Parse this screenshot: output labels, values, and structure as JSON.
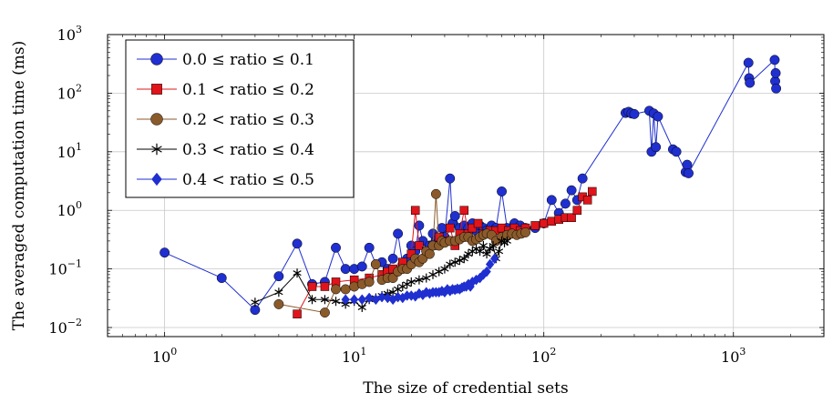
{
  "chart_data": {
    "type": "line",
    "title": "",
    "xlabel": "The size of credential sets",
    "ylabel": "The averaged computation time (ms)",
    "x_scale": "log",
    "y_scale": "log",
    "xlim": [
      0.5,
      3000
    ],
    "ylim": [
      0.007,
      1000
    ],
    "x_tick_labels": [
      {
        "base": "10",
        "exp": "0"
      },
      {
        "base": "10",
        "exp": "1"
      },
      {
        "base": "10",
        "exp": "2"
      },
      {
        "base": "10",
        "exp": "3"
      }
    ],
    "y_tick_labels": [
      {
        "base": "10",
        "exp": "−2"
      },
      {
        "base": "10",
        "exp": "−1"
      },
      {
        "base": "10",
        "exp": "0"
      },
      {
        "base": "10",
        "exp": "1"
      },
      {
        "base": "10",
        "exp": "2"
      },
      {
        "base": "10",
        "exp": "3"
      }
    ],
    "grid": true,
    "legend_position": "top-left",
    "series": [
      {
        "name": "0.0 ≤ ratio ≤ 0.1",
        "color": "#1f2fd0",
        "marker": "circle",
        "x": [
          1,
          2,
          3,
          4,
          5,
          6,
          7,
          8,
          9,
          10,
          11,
          12,
          13,
          14,
          15,
          16,
          17,
          18,
          19,
          20,
          21,
          22,
          23,
          24,
          25,
          26,
          27,
          28,
          29,
          30,
          32,
          33,
          34,
          36,
          38,
          40,
          42,
          44,
          46,
          48,
          50,
          53,
          56,
          60,
          64,
          70,
          75,
          80,
          90,
          100,
          110,
          120,
          130,
          140,
          150,
          160,
          270,
          280,
          290,
          300,
          360,
          370,
          380,
          390,
          400,
          480,
          500,
          560,
          570,
          580,
          1200,
          1210,
          1220,
          1650,
          1660,
          1670,
          1680
        ],
        "y": [
          0.19,
          0.07,
          0.02,
          0.075,
          0.27,
          0.055,
          0.06,
          0.23,
          0.1,
          0.1,
          0.11,
          0.23,
          0.12,
          0.13,
          0.1,
          0.15,
          0.4,
          0.12,
          0.15,
          0.25,
          0.2,
          0.55,
          0.3,
          0.2,
          0.25,
          0.4,
          0.3,
          0.3,
          0.5,
          0.35,
          3.5,
          0.6,
          0.8,
          0.5,
          0.55,
          0.5,
          0.6,
          0.45,
          0.55,
          0.5,
          0.45,
          0.55,
          0.5,
          2.1,
          0.5,
          0.6,
          0.55,
          0.5,
          0.5,
          0.6,
          1.5,
          0.9,
          1.3,
          2.2,
          1.5,
          3.5,
          46,
          48,
          45,
          44,
          50,
          10,
          45,
          12,
          40,
          11,
          10,
          4.5,
          6,
          4.3,
          330,
          180,
          150,
          370,
          160,
          220,
          120
        ]
      },
      {
        "name": "0.1 < ratio ≤ 0.2",
        "color": "#e0141a",
        "marker": "square",
        "x": [
          5,
          6,
          7,
          8,
          10,
          12,
          14,
          15,
          16,
          18,
          20,
          21,
          22,
          24,
          26,
          28,
          30,
          32,
          34,
          36,
          38,
          40,
          42,
          45,
          48,
          52,
          56,
          60,
          65,
          70,
          75,
          80,
          90,
          100,
          110,
          120,
          130,
          140,
          150,
          160,
          170,
          180
        ],
        "y": [
          0.017,
          0.05,
          0.05,
          0.06,
          0.065,
          0.07,
          0.08,
          0.09,
          0.1,
          0.13,
          0.18,
          1.0,
          0.25,
          0.2,
          0.25,
          0.35,
          0.3,
          0.5,
          0.25,
          0.4,
          1.0,
          0.4,
          0.5,
          0.6,
          0.4,
          0.45,
          0.45,
          0.5,
          0.45,
          0.5,
          0.45,
          0.5,
          0.55,
          0.6,
          0.65,
          0.7,
          0.75,
          0.75,
          1.0,
          1.7,
          1.5,
          2.1
        ]
      },
      {
        "name": "0.2 < ratio ≤ 0.3",
        "color": "#8b5a2b",
        "marker": "circle",
        "x": [
          4,
          7,
          8,
          9,
          10,
          11,
          12,
          13,
          14,
          15,
          16,
          17,
          18,
          19,
          20,
          21,
          22,
          23,
          24,
          25,
          26,
          27,
          28,
          29,
          30,
          32,
          34,
          36,
          38,
          40,
          42,
          44,
          46,
          48,
          50,
          53,
          56,
          60,
          64,
          68,
          72,
          76,
          80
        ],
        "y": [
          0.025,
          0.018,
          0.045,
          0.045,
          0.05,
          0.055,
          0.06,
          0.12,
          0.065,
          0.07,
          0.07,
          0.09,
          0.1,
          0.1,
          0.12,
          0.15,
          0.13,
          0.15,
          0.2,
          0.18,
          0.25,
          1.9,
          0.25,
          0.3,
          0.28,
          0.3,
          0.3,
          0.32,
          0.35,
          0.35,
          0.3,
          0.32,
          0.35,
          0.38,
          0.4,
          0.38,
          0.3,
          0.35,
          0.38,
          0.4,
          0.38,
          0.4,
          0.42
        ]
      },
      {
        "name": "0.3 < ratio ≤ 0.4",
        "color": "#000000",
        "marker": "star",
        "x": [
          3,
          4,
          5,
          6,
          7,
          8,
          9,
          10,
          11,
          12,
          13,
          14,
          15,
          16,
          17,
          18,
          19,
          20,
          22,
          24,
          26,
          28,
          30,
          32,
          34,
          36,
          38,
          40,
          42,
          44,
          46,
          48,
          50,
          52,
          54,
          56,
          58,
          60,
          62,
          64
        ],
        "y": [
          0.027,
          0.04,
          0.085,
          0.03,
          0.03,
          0.028,
          0.025,
          0.028,
          0.022,
          0.03,
          0.032,
          0.035,
          0.038,
          0.04,
          0.045,
          0.05,
          0.055,
          0.06,
          0.065,
          0.07,
          0.08,
          0.09,
          0.1,
          0.12,
          0.13,
          0.14,
          0.15,
          0.18,
          0.2,
          0.22,
          0.2,
          0.25,
          0.18,
          0.22,
          0.25,
          0.15,
          0.2,
          0.3,
          0.28,
          0.3
        ]
      },
      {
        "name": "0.4 < ratio ≤ 0.5",
        "color": "#1f2fd0",
        "marker": "diamond",
        "x": [
          9,
          10,
          11,
          12,
          13,
          14,
          15,
          16,
          17,
          18,
          19,
          20,
          21,
          22,
          23,
          24,
          25,
          26,
          27,
          28,
          29,
          30,
          31,
          32,
          33,
          34,
          35,
          36,
          37,
          38,
          39,
          40,
          41,
          42,
          44,
          46,
          48,
          50,
          52,
          55
        ],
        "y": [
          0.03,
          0.03,
          0.03,
          0.032,
          0.03,
          0.033,
          0.032,
          0.03,
          0.033,
          0.032,
          0.035,
          0.035,
          0.034,
          0.038,
          0.036,
          0.04,
          0.038,
          0.04,
          0.04,
          0.04,
          0.042,
          0.04,
          0.045,
          0.042,
          0.045,
          0.044,
          0.046,
          0.045,
          0.048,
          0.05,
          0.05,
          0.055,
          0.05,
          0.06,
          0.065,
          0.07,
          0.08,
          0.09,
          0.12,
          0.15
        ]
      }
    ]
  }
}
